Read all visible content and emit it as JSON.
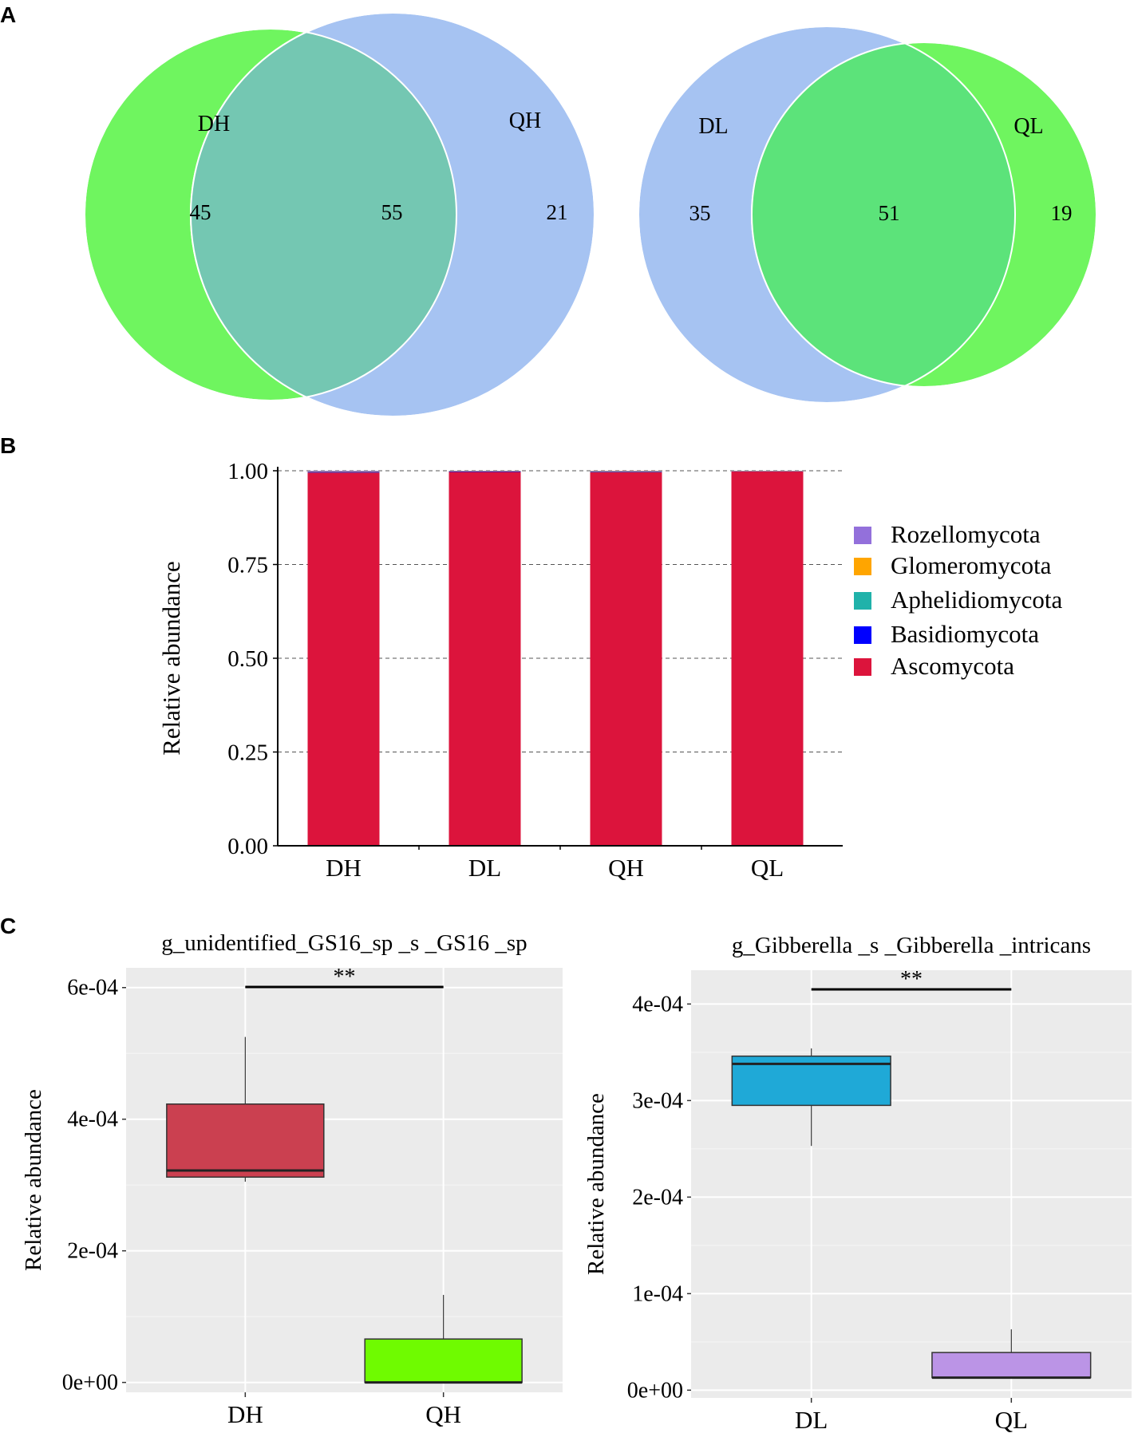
{
  "panels": {
    "a": "A",
    "b": "B",
    "c": "C"
  },
  "colors": {
    "green": "#6ff55f",
    "blue": "#a6c3f2",
    "teal_overlap": "#74c7b2",
    "green_overlap": "#5ce37a",
    "box_gray": "#ebebeb",
    "box_dh": "#cb4050",
    "box_qh": "#6ffb00",
    "box_dl": "#1fa9d7",
    "box_ql": "#bb94e6"
  },
  "chart_data": [
    {
      "type": "venn",
      "panel": "A",
      "sets": [
        {
          "name": "DH",
          "unique": 45
        },
        {
          "name": "QH",
          "unique": 21
        }
      ],
      "intersection": 55
    },
    {
      "type": "venn",
      "panel": "A",
      "sets": [
        {
          "name": "DL",
          "unique": 35
        },
        {
          "name": "QL",
          "unique": 19
        }
      ],
      "intersection": 51
    },
    {
      "type": "bar",
      "stacked": true,
      "panel": "B",
      "title": "",
      "xlabel": "",
      "ylabel": "Relative abundance",
      "categories": [
        "DH",
        "DL",
        "QH",
        "QL"
      ],
      "ylim": [
        0,
        1
      ],
      "yticks": [
        "0.00",
        "0.25",
        "0.50",
        "0.75",
        "1.00"
      ],
      "series": [
        {
          "name": "Ascomycota",
          "color": "#dc143c",
          "values": [
            0.995,
            0.997,
            0.996,
            0.998
          ]
        },
        {
          "name": "Basidiomycota",
          "color": "#0000ff",
          "values": [
            0.002,
            0.001,
            0.002,
            0.001
          ]
        },
        {
          "name": "Aphelidiomycota",
          "color": "#20b2aa",
          "values": [
            0.001,
            0.001,
            0.0005,
            0.0003
          ]
        },
        {
          "name": "Glomeromycota",
          "color": "#ffa500",
          "values": [
            0.0003,
            0.0006,
            0.0003,
            0.0002
          ]
        },
        {
          "name": "Rozellomycota",
          "color": "#9370db",
          "values": [
            0.0017,
            0.0004,
            0.0012,
            0.0005
          ]
        }
      ],
      "legend": [
        "Rozellomycota",
        "Glomeromycota",
        "Aphelidiomycota",
        "Basidiomycota",
        "Ascomycota"
      ],
      "legend_position": "right"
    },
    {
      "type": "box",
      "panel": "C",
      "title": "g_unidentified_GS16_sp _s _GS16 _sp",
      "xlabel": "",
      "ylabel": "Relative abundance",
      "categories": [
        "DH",
        "QH"
      ],
      "ylim": [
        -1.5e-05,
        0.00063
      ],
      "yticks": [
        {
          "v": 0,
          "label": "0e+00"
        },
        {
          "v": 0.0002,
          "label": "2e-04"
        },
        {
          "v": 0.0004,
          "label": "4e-04"
        },
        {
          "v": 0.0006,
          "label": "6e-04"
        }
      ],
      "boxes": [
        {
          "name": "DH",
          "min": 0.000305,
          "q1": 0.000312,
          "median": 0.000322,
          "q3": 0.000423,
          "max": 0.000525
        },
        {
          "name": "QH",
          "min": 0.0,
          "q1": 0.0,
          "median": 0.0,
          "q3": 6.6e-05,
          "max": 0.000133
        }
      ],
      "significance": "**"
    },
    {
      "type": "box",
      "panel": "C",
      "title": "g_Gibberella _s _Gibberella _intricans",
      "xlabel": "",
      "ylabel": "Relative abundance",
      "categories": [
        "DL",
        "QL"
      ],
      "ylim": [
        -8e-06,
        0.000435
      ],
      "yticks": [
        {
          "v": 0,
          "label": "0e+00"
        },
        {
          "v": 0.0001,
          "label": "1e-04"
        },
        {
          "v": 0.0002,
          "label": "2e-04"
        },
        {
          "v": 0.0003,
          "label": "3e-04"
        },
        {
          "v": 0.0004,
          "label": "4e-04"
        }
      ],
      "boxes": [
        {
          "name": "DL",
          "min": 0.000253,
          "q1": 0.000295,
          "median": 0.000338,
          "q3": 0.000346,
          "max": 0.000354
        },
        {
          "name": "QL",
          "min": 1.3e-05,
          "q1": 1.3e-05,
          "median": 1.3e-05,
          "q3": 3.9e-05,
          "max": 6.3e-05
        }
      ],
      "significance": "**"
    }
  ]
}
